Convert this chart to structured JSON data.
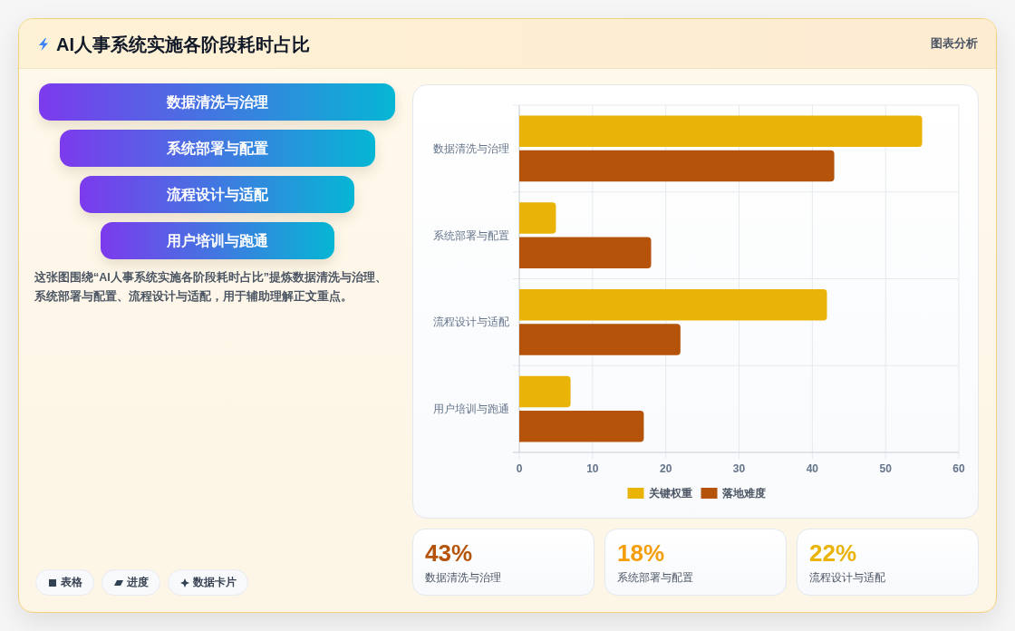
{
  "chart_data": [
    {
      "type": "other",
      "title": "AI人事系统实施各阶段耗时占比",
      "categories": [
        "数据清洗与治理",
        "系统部署与配置",
        "流程设计与适配",
        "用户培训与跑通"
      ],
      "annotations": [
        "图表分析",
        "这张图围绕“AI人事系统实施各阶段耗时占比”提炼数据清洗与治理、系统部署与配置、流程设计与适配，用于辅助理解正文重点。",
        "表格",
        "进度",
        "数据卡片"
      ]
    },
    {
      "type": "bar",
      "orientation": "horizontal",
      "categories": [
        "数据清洗与治理",
        "系统部署与配置",
        "流程设计与适配",
        "用户培训与跑通"
      ],
      "series": [
        {
          "name": "关键权重",
          "color": "#eab308",
          "values": [
            55,
            5,
            42,
            7
          ]
        },
        {
          "name": "落地难度",
          "color": "#b45309",
          "values": [
            43,
            18,
            22,
            17
          ]
        }
      ],
      "xlim": [
        0,
        60
      ],
      "xticks": [
        0,
        10,
        20,
        30,
        40,
        50,
        60
      ],
      "grid": true,
      "legend": "bottom"
    },
    {
      "type": "other",
      "categories": [
        "数据清洗与治理",
        "系统部署与配置",
        "流程设计与适配"
      ],
      "value_labels": [
        "43%",
        "18%",
        "22%"
      ]
    }
  ]
}
